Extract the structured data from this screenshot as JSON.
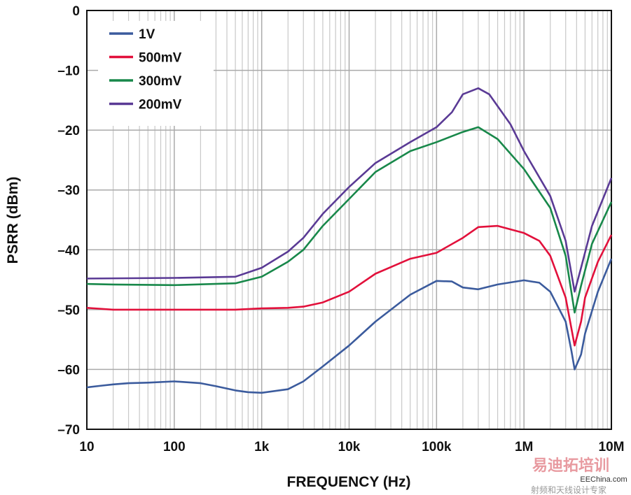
{
  "chart_data": {
    "type": "line",
    "xlabel": "FREQUENCY (Hz)",
    "ylabel": "PSRR (dBm)",
    "x_scale": "log",
    "xlim": [
      10,
      10000000
    ],
    "ylim": [
      -70,
      0
    ],
    "grid": true,
    "legend_position": "top-left",
    "x_ticks": [
      {
        "v": 10,
        "label": "10"
      },
      {
        "v": 100,
        "label": "100"
      },
      {
        "v": 1000,
        "label": "1k"
      },
      {
        "v": 10000,
        "label": "10k"
      },
      {
        "v": 100000,
        "label": "100k"
      },
      {
        "v": 1000000,
        "label": "1M"
      },
      {
        "v": 10000000,
        "label": "10M"
      }
    ],
    "y_ticks": [
      {
        "v": 0,
        "label": "0"
      },
      {
        "v": -10,
        "label": "–10"
      },
      {
        "v": -20,
        "label": "–20"
      },
      {
        "v": -30,
        "label": "–30"
      },
      {
        "v": -40,
        "label": "–40"
      },
      {
        "v": -50,
        "label": "–50"
      },
      {
        "v": -60,
        "label": "–60"
      },
      {
        "v": -70,
        "label": "–70"
      }
    ],
    "series": [
      {
        "name": "1V",
        "color": "#3b5b9d",
        "x": [
          10,
          15,
          20,
          30,
          50,
          100,
          200,
          300,
          500,
          700,
          1000,
          2000,
          3000,
          5000,
          10000,
          20000,
          50000,
          100000,
          150000,
          200000,
          300000,
          500000,
          1000000,
          1500000,
          2000000,
          3000000,
          3500000,
          3800000,
          4500000,
          5000000,
          7000000,
          10000000
        ],
        "y": [
          -63,
          -62.7,
          -62.5,
          -62.3,
          -62.2,
          -62,
          -62.3,
          -62.8,
          -63.5,
          -63.8,
          -63.9,
          -63.3,
          -62,
          -59.5,
          -56,
          -52,
          -47.5,
          -45.2,
          -45.3,
          -46.3,
          -46.6,
          -45.8,
          -45.1,
          -45.5,
          -47,
          -52,
          -57,
          -60,
          -57.5,
          -54,
          -47,
          -41.5
        ]
      },
      {
        "name": "500mV",
        "color": "#e2103b",
        "x": [
          10,
          20,
          100,
          500,
          1000,
          2000,
          3000,
          5000,
          10000,
          20000,
          50000,
          100000,
          200000,
          300000,
          500000,
          1000000,
          1500000,
          2000000,
          3000000,
          3800000,
          4500000,
          5000000,
          7000000,
          10000000
        ],
        "y": [
          -49.7,
          -50,
          -50,
          -50,
          -49.8,
          -49.7,
          -49.5,
          -48.8,
          -47,
          -44,
          -41.5,
          -40.5,
          -38,
          -36.2,
          -36,
          -37.2,
          -38.5,
          -41,
          -48,
          -56,
          -52,
          -48,
          -42,
          -37.5
        ]
      },
      {
        "name": "300mV",
        "color": "#18884a",
        "x": [
          10,
          20,
          100,
          500,
          1000,
          2000,
          3000,
          5000,
          10000,
          20000,
          50000,
          100000,
          200000,
          300000,
          500000,
          1000000,
          2000000,
          3000000,
          3800000,
          4500000,
          6000000,
          10000000
        ],
        "y": [
          -45.7,
          -45.8,
          -45.9,
          -45.6,
          -44.5,
          -42,
          -40,
          -36,
          -31.5,
          -27,
          -23.5,
          -22,
          -20.3,
          -19.5,
          -21.5,
          -26.5,
          -33,
          -41,
          -50.5,
          -46,
          -39,
          -32
        ]
      },
      {
        "name": "200mV",
        "color": "#5a3a95",
        "x": [
          10,
          100,
          500,
          1000,
          2000,
          3000,
          5000,
          10000,
          20000,
          50000,
          100000,
          150000,
          200000,
          300000,
          400000,
          700000,
          1000000,
          2000000,
          3000000,
          3800000,
          4500000,
          6000000,
          10000000
        ],
        "y": [
          -44.8,
          -44.7,
          -44.5,
          -43,
          -40.3,
          -38,
          -34,
          -29.5,
          -25.5,
          -22,
          -19.5,
          -17,
          -14,
          -13,
          -14,
          -19,
          -23.5,
          -31,
          -38.5,
          -47,
          -43,
          -36,
          -28
        ]
      }
    ]
  },
  "watermark": {
    "title": "易迪拓培训",
    "subtitle": "射频和天线设计专家",
    "site": "EEChina.com"
  }
}
